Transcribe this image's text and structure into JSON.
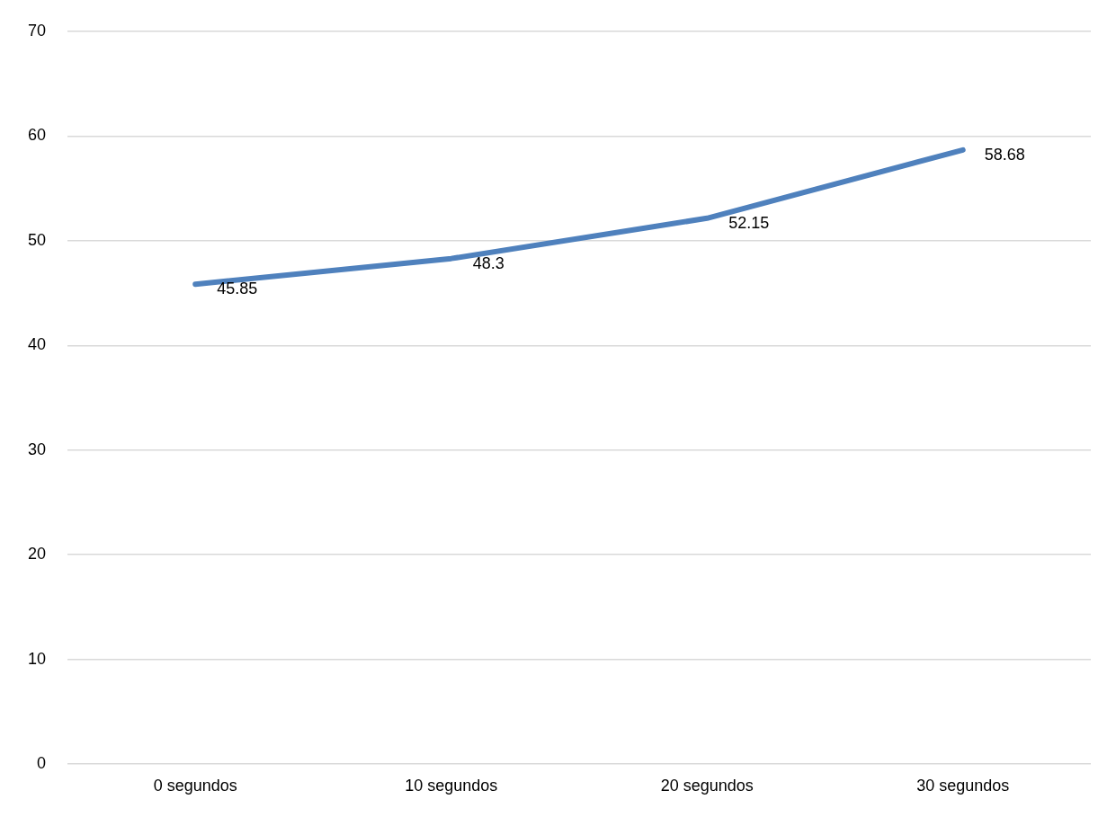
{
  "chart_data": {
    "type": "line",
    "categories": [
      "0 segundos",
      "10 segundos",
      "20 segundos",
      "30 segundos"
    ],
    "series": [
      {
        "color": "#4f81bd",
        "values": [
          45.85,
          48.3,
          52.15,
          58.68
        ]
      }
    ],
    "ylim": [
      0,
      70
    ],
    "yticks": [
      0,
      10,
      20,
      30,
      40,
      50,
      60,
      70
    ],
    "grid": "y",
    "legend": false,
    "data_labels": true,
    "marker": "none",
    "line_style": "solid"
  }
}
